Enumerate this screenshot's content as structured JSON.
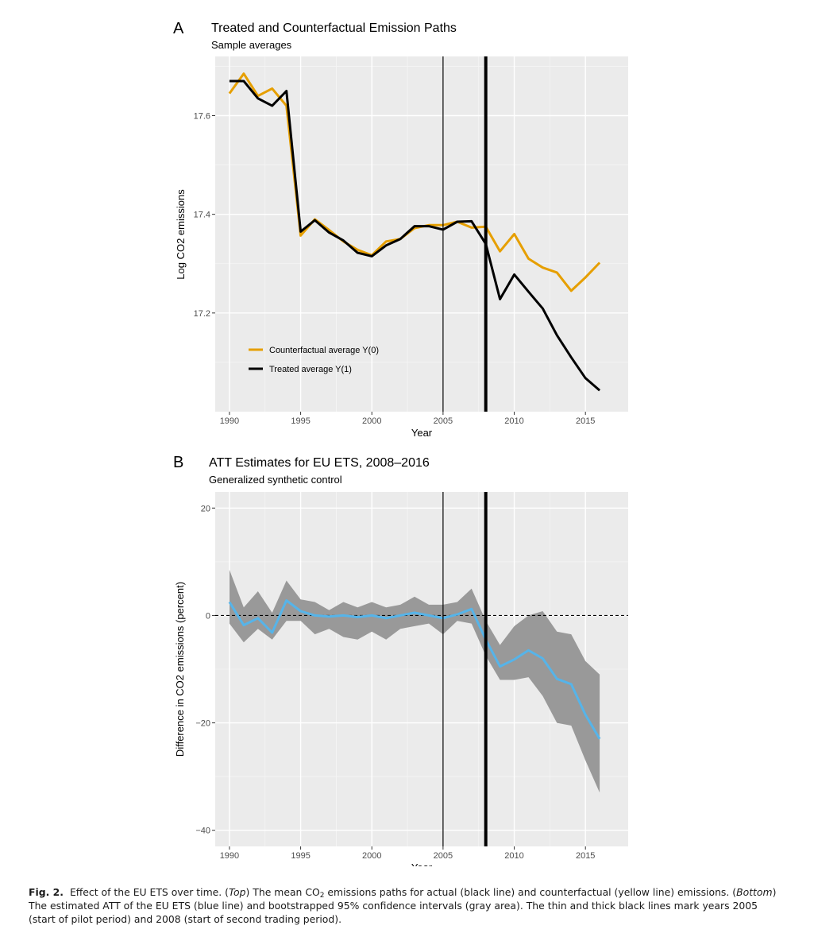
{
  "chart_data": [
    {
      "type": "line",
      "panel_letter": "A",
      "title": "Treated and Counterfactual Emission Paths",
      "subtitle": "Sample averages",
      "xlabel": "Year",
      "ylabel": "Log CO2 emissions",
      "xlim": [
        1989,
        2018
      ],
      "ylim": [
        17.0,
        17.72
      ],
      "xticks": [
        1990,
        1995,
        2000,
        2005,
        2010,
        2015
      ],
      "yticks": [
        17.2,
        17.4,
        17.6
      ],
      "ytick_labels": [
        "17.2",
        "17.4",
        "17.6"
      ],
      "grid": true,
      "legend_position": "bottom-left",
      "vlines": [
        {
          "x": 2005,
          "style": "thin"
        },
        {
          "x": 2008,
          "style": "thick"
        }
      ],
      "x": [
        1990,
        1991,
        1992,
        1993,
        1994,
        1995,
        1996,
        1997,
        1998,
        1999,
        2000,
        2001,
        2002,
        2003,
        2004,
        2005,
        2006,
        2007,
        2008,
        2009,
        2010,
        2011,
        2012,
        2013,
        2014,
        2015,
        2016
      ],
      "series": [
        {
          "name": "Counterfactual average Y(0)",
          "color": "#E69F00",
          "values": [
            17.645,
            17.685,
            17.64,
            17.655,
            17.62,
            17.357,
            17.39,
            17.368,
            17.345,
            17.328,
            17.317,
            17.345,
            17.35,
            17.372,
            17.378,
            17.378,
            17.385,
            17.373,
            17.375,
            17.325,
            17.36,
            17.31,
            17.292,
            17.282,
            17.245,
            17.272,
            17.302
          ]
        },
        {
          "name": "Treated average Y(1)",
          "color": "#000000",
          "values": [
            17.67,
            17.67,
            17.635,
            17.62,
            17.65,
            17.365,
            17.388,
            17.363,
            17.347,
            17.322,
            17.315,
            17.337,
            17.35,
            17.376,
            17.376,
            17.369,
            17.385,
            17.386,
            17.34,
            17.228,
            17.278,
            17.243,
            17.209,
            17.155,
            17.11,
            17.068,
            17.043
          ]
        }
      ]
    },
    {
      "type": "line",
      "panel_letter": "B",
      "title": "ATT Estimates for EU ETS, 2008–2016",
      "subtitle": "Generalized synthetic control",
      "xlabel": "Year",
      "ylabel": "Difference in CO2 emissions (percent)",
      "xlim": [
        1989,
        2018
      ],
      "ylim": [
        -43,
        23
      ],
      "xticks": [
        1990,
        1995,
        2000,
        2005,
        2010,
        2015
      ],
      "yticks": [
        -40,
        -20,
        0,
        20
      ],
      "ytick_labels": [
        "−40",
        "−20",
        "0",
        "20"
      ],
      "grid": true,
      "hline": {
        "y": 0,
        "style": "dashed"
      },
      "vlines": [
        {
          "x": 2005,
          "style": "thin"
        },
        {
          "x": 2008,
          "style": "thick"
        }
      ],
      "x": [
        1990,
        1991,
        1992,
        1993,
        1994,
        1995,
        1996,
        1997,
        1998,
        1999,
        2000,
        2001,
        2002,
        2003,
        2004,
        2005,
        2006,
        2007,
        2008,
        2009,
        2010,
        2011,
        2012,
        2013,
        2014,
        2015,
        2016
      ],
      "series": [
        {
          "name": "ATT",
          "color": "#56B4E9",
          "values": [
            2.5,
            -1.8,
            -0.5,
            -3.2,
            2.8,
            0.8,
            0.0,
            -0.2,
            0.0,
            -0.3,
            0.0,
            -0.5,
            0.0,
            0.5,
            0.0,
            -0.5,
            0.2,
            1.2,
            -4.5,
            -9.5,
            -8.2,
            -6.5,
            -8.0,
            -11.8,
            -12.8,
            -18.5,
            -23.0
          ]
        }
      ],
      "band": {
        "name": "95% confidence interval",
        "color": "#999999",
        "upper": [
          8.5,
          1.5,
          4.5,
          0.5,
          6.5,
          3.0,
          2.5,
          1.0,
          2.5,
          1.5,
          2.5,
          1.5,
          2.0,
          3.5,
          2.0,
          2.0,
          2.5,
          5.0,
          -1.0,
          -5.5,
          -2.0,
          0.0,
          0.8,
          -3.0,
          -3.5,
          -8.5,
          -11.0
        ],
        "lower": [
          -1.5,
          -5.0,
          -2.5,
          -4.5,
          -1.0,
          -1.0,
          -3.5,
          -2.5,
          -4.0,
          -4.5,
          -3.0,
          -4.5,
          -2.5,
          -2.0,
          -1.5,
          -3.5,
          -1.0,
          -1.5,
          -7.5,
          -12.0,
          -12.0,
          -11.5,
          -15.0,
          -20.0,
          -20.5,
          -27.0,
          -33.0
        ]
      }
    }
  ],
  "caption": {
    "label": "Fig. 2.",
    "parts": [
      {
        "t": "Effect of the EU ETS over time. ("
      },
      {
        "t": "Top",
        "i": true
      },
      {
        "t": ") The mean CO"
      },
      {
        "t": "2",
        "sub": true
      },
      {
        "t": " emissions paths for actual (black line) and counterfactual (yellow line) emissions. ("
      },
      {
        "t": "Bottom",
        "i": true
      },
      {
        "t": ") The estimated ATT of the EU ETS (blue line) and bootstrapped 95% confidence intervals (gray area). The thin and thick black lines mark years 2005 (start of pilot period) and 2008 (start of second trading period)."
      }
    ]
  }
}
